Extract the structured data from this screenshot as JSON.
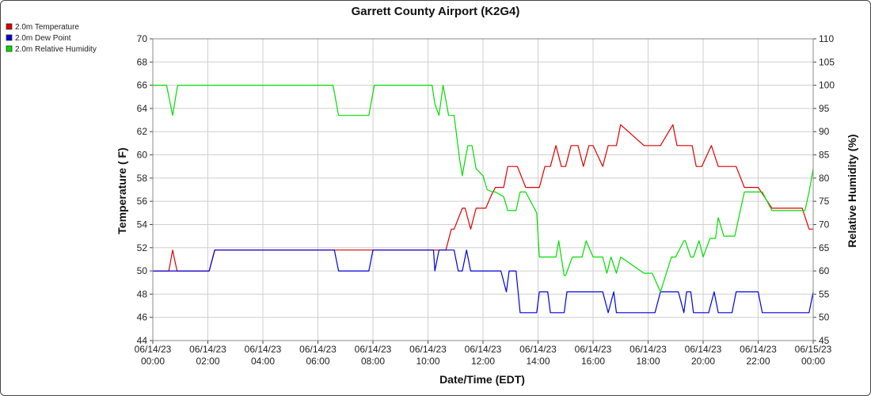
{
  "chart_data": {
    "type": "line",
    "title": "Garrett County Airport (K2G4)",
    "xlabel": "Date/Time (EDT)",
    "ylabel_left": "Temperature ( F)",
    "ylabel_right": "Relative Humidity (%)",
    "ylim_left": [
      44,
      70
    ],
    "ylim_right": [
      45,
      110
    ],
    "xlim_hours": [
      0,
      24
    ],
    "grid": true,
    "legend_position": "top-left",
    "y_left_ticks": [
      44,
      46,
      48,
      50,
      52,
      54,
      56,
      58,
      60,
      62,
      64,
      66,
      68,
      70
    ],
    "y_right_ticks": [
      45,
      50,
      55,
      60,
      65,
      70,
      75,
      80,
      85,
      90,
      95,
      100,
      105,
      110
    ],
    "x_ticks": [
      {
        "hour": 0,
        "date": "06/14/23",
        "time": "00:00"
      },
      {
        "hour": 2,
        "date": "06/14/23",
        "time": "02:00"
      },
      {
        "hour": 4,
        "date": "06/14/23",
        "time": "04:00"
      },
      {
        "hour": 6,
        "date": "06/14/23",
        "time": "06:00"
      },
      {
        "hour": 8,
        "date": "06/14/23",
        "time": "08:00"
      },
      {
        "hour": 10,
        "date": "06/14/23",
        "time": "10:00"
      },
      {
        "hour": 12,
        "date": "06/14/23",
        "time": "12:00"
      },
      {
        "hour": 14,
        "date": "06/14/23",
        "time": "14:00"
      },
      {
        "hour": 16,
        "date": "06/14/23",
        "time": "16:00"
      },
      {
        "hour": 18,
        "date": "06/14/23",
        "time": "18:00"
      },
      {
        "hour": 20,
        "date": "06/14/23",
        "time": "20:00"
      },
      {
        "hour": 22,
        "date": "06/14/23",
        "time": "22:00"
      },
      {
        "hour": 24,
        "date": "06/15/23",
        "time": "00:00"
      }
    ],
    "series": [
      {
        "name": "2.0m Temperature",
        "color": "#dd0000",
        "axis": "left",
        "x": [
          0,
          0.58,
          0.72,
          0.88,
          2.05,
          2.25,
          6.6,
          8.0,
          10.0,
          10.25,
          10.55,
          10.65,
          10.85,
          10.95,
          11.25,
          11.35,
          11.55,
          11.75,
          12.0,
          12.1,
          12.3,
          12.45,
          12.75,
          12.9,
          13.0,
          13.25,
          13.55,
          13.65,
          13.95,
          14.05,
          14.25,
          14.45,
          14.65,
          14.85,
          15.0,
          15.2,
          15.45,
          15.65,
          15.85,
          16.0,
          16.35,
          16.55,
          16.85,
          17.0,
          17.85,
          18.05,
          18.25,
          18.45,
          18.9,
          19.05,
          19.6,
          19.75,
          19.95,
          20.3,
          20.55,
          21.2,
          21.5,
          22.0,
          22.5,
          23.0,
          23.6,
          23.85,
          24.0
        ],
        "y": [
          50.0,
          50.0,
          51.8,
          50.0,
          50.0,
          51.8,
          51.8,
          51.8,
          51.8,
          51.8,
          51.8,
          51.8,
          53.6,
          53.6,
          55.4,
          55.4,
          53.6,
          55.4,
          55.4,
          55.4,
          56.5,
          57.2,
          57.2,
          59.0,
          59.0,
          59.0,
          57.2,
          57.2,
          57.2,
          57.2,
          59.0,
          59.0,
          60.8,
          59.0,
          59.0,
          60.8,
          60.8,
          59.0,
          60.8,
          60.8,
          59.0,
          60.8,
          60.8,
          62.6,
          60.8,
          60.8,
          60.8,
          60.8,
          62.6,
          60.8,
          60.8,
          59.0,
          59.0,
          60.8,
          59.0,
          59.0,
          57.2,
          57.2,
          55.4,
          55.4,
          55.4,
          53.6,
          53.6
        ]
      },
      {
        "name": "2.0m Dew Point",
        "color": "#0000dd",
        "axis": "left",
        "x": [
          0,
          2.05,
          2.25,
          6.6,
          6.75,
          7.85,
          8.0,
          10.2,
          10.25,
          10.4,
          10.55,
          10.95,
          11.1,
          11.25,
          11.4,
          11.55,
          11.7,
          12.0,
          12.1,
          12.3,
          12.65,
          12.85,
          12.95,
          13.2,
          13.35,
          13.55,
          13.95,
          14.05,
          14.35,
          14.45,
          14.6,
          14.95,
          15.05,
          15.25,
          15.45,
          15.65,
          16.0,
          16.35,
          16.55,
          16.75,
          16.85,
          17.0,
          18.25,
          18.45,
          19.1,
          19.3,
          19.4,
          19.55,
          19.65,
          20.05,
          20.2,
          20.4,
          20.55,
          21.05,
          21.2,
          21.5,
          22.0,
          22.15,
          22.5,
          23.0,
          23.5,
          23.7,
          23.85,
          24.0
        ],
        "y": [
          50.0,
          50.0,
          51.8,
          51.8,
          50.0,
          50.0,
          51.8,
          51.8,
          50.0,
          51.8,
          51.8,
          51.8,
          50.0,
          50.0,
          51.8,
          50.0,
          50.0,
          50.0,
          50.0,
          50.0,
          50.0,
          48.2,
          50.0,
          50.0,
          46.4,
          46.4,
          46.4,
          48.2,
          48.2,
          46.4,
          46.4,
          46.4,
          48.2,
          48.2,
          48.2,
          48.2,
          48.2,
          48.2,
          46.4,
          48.2,
          46.4,
          46.4,
          46.4,
          48.2,
          48.2,
          46.4,
          48.2,
          48.2,
          46.4,
          46.4,
          46.4,
          48.2,
          46.4,
          46.4,
          48.2,
          48.2,
          48.2,
          46.4,
          46.4,
          46.4,
          46.4,
          46.4,
          46.4,
          48.2
        ]
      },
      {
        "name": "2.0m Relative Humidity",
        "color": "#00dd00",
        "axis": "right",
        "x": [
          0,
          0.5,
          0.72,
          0.9,
          2.05,
          6.55,
          6.75,
          7.85,
          8.05,
          10.0,
          10.15,
          10.25,
          10.4,
          10.55,
          10.75,
          10.95,
          11.15,
          11.25,
          11.35,
          11.45,
          11.6,
          11.75,
          12.0,
          12.15,
          12.35,
          12.45,
          12.75,
          12.9,
          13.05,
          13.2,
          13.35,
          13.55,
          13.95,
          14.05,
          14.35,
          14.45,
          14.65,
          14.75,
          14.95,
          15.0,
          15.25,
          15.45,
          15.6,
          15.75,
          16.0,
          16.35,
          16.5,
          16.65,
          16.85,
          17.0,
          17.85,
          18.0,
          18.15,
          18.45,
          18.85,
          19.0,
          19.3,
          19.35,
          19.55,
          19.65,
          19.85,
          20.0,
          20.25,
          20.45,
          20.55,
          20.75,
          21.0,
          21.15,
          21.35,
          21.5,
          22.0,
          22.15,
          22.5,
          23.0,
          23.5,
          23.7,
          23.85,
          24.0
        ],
        "y": [
          100,
          100,
          93.5,
          100,
          100,
          100,
          93.5,
          93.5,
          100,
          100,
          100,
          96,
          93.5,
          100,
          93.5,
          93.5,
          84,
          80.5,
          84,
          87,
          87,
          82,
          80.5,
          77.5,
          77,
          77,
          76,
          73,
          73,
          73,
          77,
          77,
          72.5,
          63,
          63,
          63,
          63,
          66.5,
          59,
          59,
          63,
          63,
          63,
          66.5,
          63,
          63,
          59.5,
          63,
          59.5,
          63,
          59.5,
          59.5,
          59.5,
          55.5,
          63,
          63,
          66.5,
          66.5,
          63,
          63,
          66.5,
          63,
          67,
          67,
          71.5,
          67.5,
          67.5,
          67.5,
          73,
          77,
          77,
          77,
          73,
          73,
          73,
          73,
          77,
          82
        ]
      }
    ]
  }
}
